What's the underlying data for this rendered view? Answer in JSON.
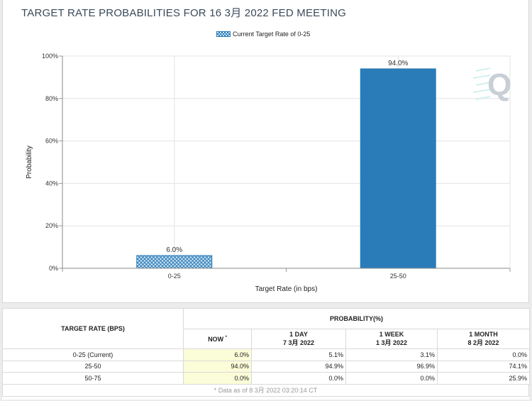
{
  "chart": {
    "title": "TARGET RATE PROBABILITIES FOR 16 3月 2022 FED MEETING",
    "legend_label": "Current Target Rate of 0-25",
    "watermark": "Q"
  },
  "chart_data": {
    "type": "bar",
    "title": "TARGET RATE PROBABILITIES FOR 16 3月 2022 FED MEETING",
    "xlabel": "Target Rate (in bps)",
    "ylabel": "Probability",
    "categories": [
      "0-25",
      "25-50"
    ],
    "values": [
      6.0,
      94.0
    ],
    "value_labels": [
      "6.0%",
      "94.0%"
    ],
    "highlight_category": "0-25",
    "ylim": [
      0,
      100
    ],
    "yticks": [
      0,
      20,
      40,
      60,
      80,
      100
    ],
    "ytick_labels": [
      "0%",
      "20%",
      "40%",
      "60%",
      "80%",
      "100%"
    ],
    "grid": true,
    "legend_position": "top-center",
    "colors": {
      "bar": "#2a7cb8",
      "hatch_bg": "#cfe3f2",
      "grid": "#e4e4e4"
    }
  },
  "table": {
    "col_rate_header": "TARGET RATE (BPS)",
    "col_prob_header": "PROBABILITY(%)",
    "sub_headers": [
      {
        "label": "NOW",
        "mark": "*",
        "date": ""
      },
      {
        "label": "1 DAY",
        "mark": "",
        "date": "7 3月 2022"
      },
      {
        "label": "1 WEEK",
        "mark": "",
        "date": "1 3月 2022"
      },
      {
        "label": "1 MONTH",
        "mark": "",
        "date": "8 2月 2022"
      }
    ],
    "rows": [
      {
        "rate": "0-25 (Current)",
        "now": "6.0%",
        "day": "5.1%",
        "week": "3.1%",
        "month": "0.0%"
      },
      {
        "rate": "25-50",
        "now": "94.0%",
        "day": "94.9%",
        "week": "96.9%",
        "month": "74.1%"
      },
      {
        "rate": "50-75",
        "now": "0.0%",
        "day": "0.0%",
        "week": "0.0%",
        "month": "25.9%"
      }
    ],
    "footnote": "* Data as of 8 3月 2022 03:20:14 CT"
  }
}
